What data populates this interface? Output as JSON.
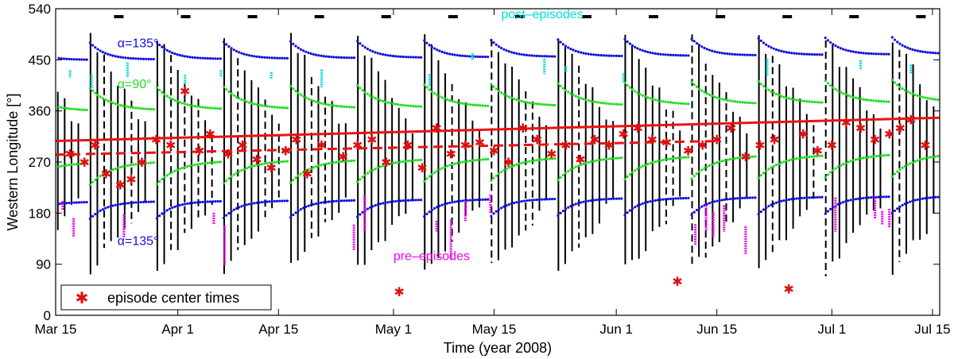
{
  "chart_data": {
    "type": "scatter",
    "title": "",
    "xlabel": "Time (year 2008)",
    "ylabel": "Western Longitude [°]",
    "xlim": [
      0,
      123
    ],
    "ylim": [
      0,
      540
    ],
    "x_ticks": [
      {
        "day": 0,
        "label": "Mar 15"
      },
      {
        "day": 17,
        "label": "Apr 1"
      },
      {
        "day": 31,
        "label": "Apr 15"
      },
      {
        "day": 47,
        "label": "May 1"
      },
      {
        "day": 61,
        "label": "May 15"
      },
      {
        "day": 78,
        "label": "Jun 1"
      },
      {
        "day": 92,
        "label": "Jun 15"
      },
      {
        "day": 108,
        "label": "Jul 1"
      },
      {
        "day": 122,
        "label": "Jul 15"
      }
    ],
    "y_ticks": [
      0,
      90,
      180,
      270,
      360,
      450,
      540
    ],
    "colors": {
      "alpha90": "#22dd22",
      "alpha135": "#1010dd",
      "post": "#00dddd",
      "pre": "#ee00ee",
      "fit": "#ee1111",
      "centers": "#dd1111",
      "episodes": "#000000"
    },
    "rotation_period_days": 9.3,
    "rotation_phase_day": 4.6,
    "annotations": [
      {
        "text": "α=135°",
        "day": 8.6,
        "lon": 472,
        "color_key": "alpha135"
      },
      {
        "text": "α=90°",
        "day": 8.6,
        "lon": 400,
        "color_key": "alpha90"
      },
      {
        "text": "α=135°",
        "day": 8.6,
        "lon": 124,
        "color_key": "alpha135"
      },
      {
        "text": "post–episodes",
        "day": 62,
        "lon": 523,
        "color_key": "post"
      },
      {
        "text": "pre–episodes",
        "day": 47,
        "lon": 97,
        "color_key": "pre"
      }
    ],
    "series": [
      {
        "name": "linear fit (solid)",
        "type": "line",
        "x": [
          0,
          123
        ],
        "y": [
          307,
          348
        ]
      },
      {
        "name": "linear fit (dashed)",
        "type": "line",
        "x": [
          0,
          92
        ],
        "y": [
          283,
          307
        ]
      },
      {
        "name": "episode center times",
        "type": "scatter",
        "x": [
          2,
          4,
          5.5,
          7,
          9,
          10.5,
          12,
          14,
          16,
          18,
          20,
          21.5,
          24,
          26,
          28,
          30,
          32,
          33.5,
          35,
          37,
          40,
          42,
          44,
          46,
          47.8,
          49,
          51,
          53,
          55,
          57,
          59,
          61,
          63,
          65,
          67,
          69,
          71,
          73,
          75,
          77,
          79,
          81,
          83,
          85,
          86.5,
          88,
          90,
          92,
          94,
          96,
          98,
          100,
          102,
          104,
          106,
          108,
          110,
          112,
          114,
          116,
          117.5,
          119,
          121
        ],
        "y": [
          285,
          270,
          300,
          250,
          230,
          240,
          270,
          310,
          300,
          395,
          290,
          320,
          285,
          300,
          275,
          260,
          290,
          310,
          250,
          300,
          280,
          300,
          310,
          270,
          42,
          300,
          260,
          330,
          285,
          300,
          305,
          290,
          270,
          330,
          310,
          285,
          300,
          275,
          310,
          300,
          320,
          330,
          310,
          305,
          60,
          290,
          300,
          310,
          330,
          280,
          300,
          310,
          47,
          320,
          290,
          300,
          340,
          330,
          310,
          320,
          330,
          345,
          300
        ]
      },
      {
        "name": "episodes (vertical bars)",
        "type": "line",
        "note": "black vertical segments spanning the episode longitude range"
      }
    ],
    "legend": {
      "position": "bottom-left",
      "entries": [
        "episode center times"
      ]
    }
  }
}
